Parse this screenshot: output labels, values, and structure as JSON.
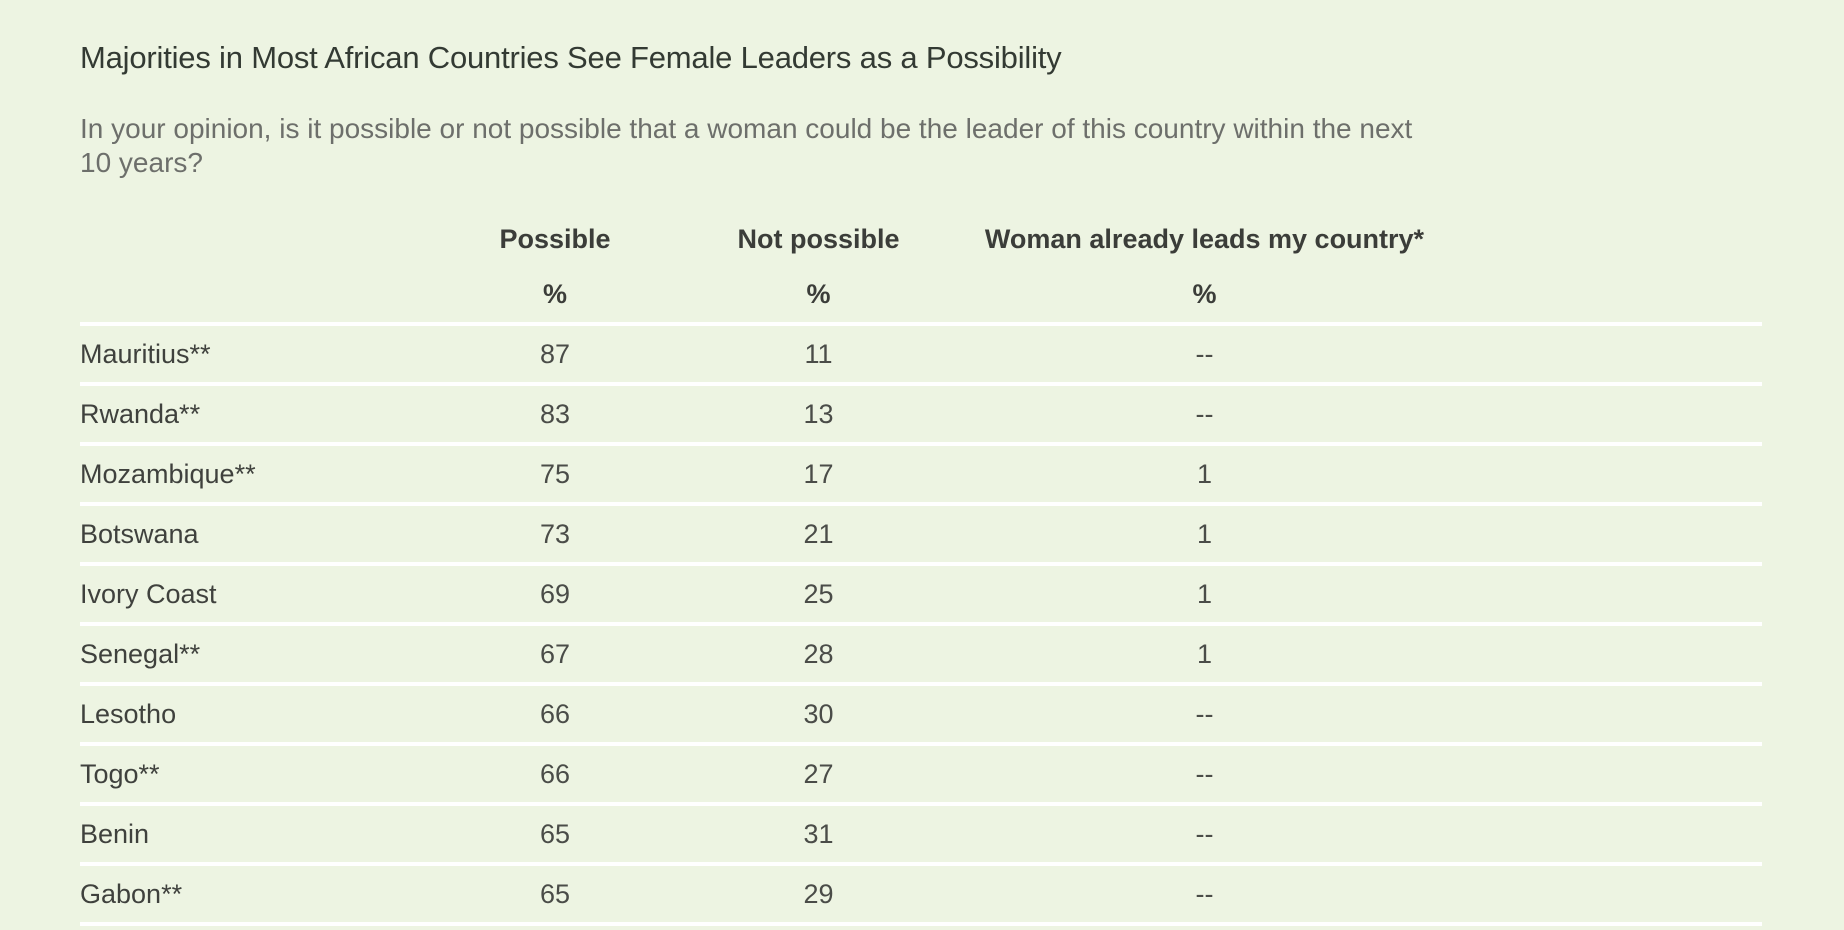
{
  "title": "Majorities in Most African Countries See Female Leaders as a Possibility",
  "subtitle": "In your opinion, is it possible or not possible that a woman could be the leader of this country within the next 10 years?",
  "colors": {
    "background": "#edf4e2",
    "row_divider": "#ffffff",
    "text": "#333a33"
  },
  "chart_data": {
    "type": "table",
    "title": "Majorities in Most African Countries See Female Leaders as a Possibility",
    "subtitle": "In your opinion, is it possible or not possible that a woman could be the leader of this country within the next 10 years?",
    "columns": [
      {
        "label": "",
        "unit": ""
      },
      {
        "label": "Possible",
        "unit": "%"
      },
      {
        "label": "Not possible",
        "unit": "%"
      },
      {
        "label": "Woman already leads my country*",
        "unit": "%"
      }
    ],
    "rows": [
      [
        "Mauritius**",
        "87",
        "11",
        "--"
      ],
      [
        "Rwanda**",
        "83",
        "13",
        "--"
      ],
      [
        "Mozambique**",
        "75",
        "17",
        "1"
      ],
      [
        "Botswana",
        "73",
        "21",
        "1"
      ],
      [
        "Ivory Coast",
        "69",
        "25",
        "1"
      ],
      [
        "Senegal**",
        "67",
        "28",
        "1"
      ],
      [
        "Lesotho",
        "66",
        "30",
        "--"
      ],
      [
        "Togo**",
        "66",
        "27",
        "--"
      ],
      [
        "Benin",
        "65",
        "31",
        "--"
      ],
      [
        "Gabon**",
        "65",
        "29",
        "--"
      ]
    ]
  }
}
